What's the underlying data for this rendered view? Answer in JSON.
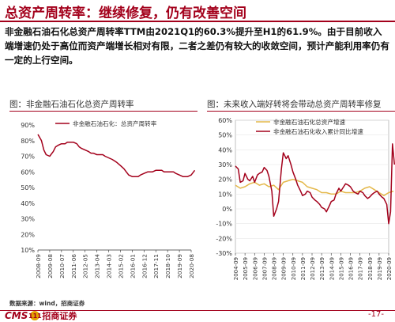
{
  "page": {
    "title": "总资产周转率：继续修复，仍有改善空间",
    "body": "非金融石油石化总资产周转率TTM由2021Q1的60.3%提升至H1的61.9%。由于目前收入端增速仍处于高位而资产端增长相对有限，二者之差仍有较大的收敛空间，预计产能利用率仍有一定的上行空间。",
    "source": "数据来源：wind，招商证券",
    "logo_text": "CMS",
    "logo_badge": "111",
    "logo_cn": "招商证券",
    "page_number": "-17-",
    "accent_color": "#a3001b",
    "gold_color": "#e4b84a"
  },
  "chart_data": [
    {
      "type": "line",
      "title": "图：非金融石油石化总资产周转率",
      "y_ticks": [
        "90%",
        "80%",
        "70%",
        "60%",
        "50%",
        "40%",
        "30%",
        "20%",
        "10%"
      ],
      "ylim": [
        10,
        90
      ],
      "x_tick_labels": [
        "2008-09",
        "2009-08",
        "2010-07",
        "2011-06",
        "2012-05",
        "2013-04",
        "2014-03",
        "2015-02",
        "2016-01",
        "2016-12",
        "2017-11",
        "2018-10",
        "2019-09",
        "2020-08"
      ],
      "legend_position": "top-left",
      "series": [
        {
          "name": "非金融石油石化：总资产周转率",
          "color": "#a3001b",
          "x": [
            0,
            0.3,
            0.5,
            0.7,
            1,
            1.3,
            1.5,
            1.7,
            2,
            2.3,
            2.5,
            2.7,
            3,
            3.3,
            3.5,
            3.7,
            4,
            4.3,
            4.5,
            4.7,
            5,
            5.3,
            5.5,
            5.7,
            6,
            6.3,
            6.5,
            6.7,
            7,
            7.3,
            7.5,
            7.7,
            8,
            8.3,
            8.5,
            8.7,
            9,
            9.3,
            9.5,
            9.7,
            10,
            10.3,
            10.5,
            10.7,
            11,
            11.3,
            11.5,
            11.7,
            12,
            12.3,
            12.5,
            12.7,
            13,
            13.3
          ],
          "values": [
            84,
            80,
            74,
            71,
            70,
            73,
            76,
            77,
            78,
            78,
            79,
            79,
            79,
            78,
            76,
            75,
            74,
            73,
            72,
            72,
            71,
            71,
            71,
            70,
            69,
            68,
            67,
            66,
            64,
            62,
            60,
            58,
            57,
            57,
            57,
            58,
            59,
            60,
            60,
            60,
            61,
            61,
            61,
            60,
            60,
            60,
            60,
            59,
            58,
            57,
            57,
            57,
            58,
            61
          ]
        }
      ]
    },
    {
      "type": "line",
      "title": "图：未来收入端好转将会带动总资产周转率修复",
      "y_ticks": [
        "60%",
        "50%",
        "40%",
        "30%",
        "20%",
        "10%",
        "0%",
        "-10%",
        "-20%",
        "-30%"
      ],
      "ylim": [
        -30,
        60
      ],
      "x_tick_labels": [
        "2004-09",
        "2005-09",
        "2006-09",
        "2007-09",
        "2008-09",
        "2009-09",
        "2010-09",
        "2011-09",
        "2012-09",
        "2013-09",
        "2014-09",
        "2015-09",
        "2016-09",
        "2017-09",
        "2018-09",
        "2019-09",
        "2020-09"
      ],
      "legend_position": "top",
      "series": [
        {
          "name": "非金融石油石化总资产增速",
          "color": "#e4b84a",
          "x": [
            0,
            0.5,
            1,
            1.5,
            2,
            2.5,
            3,
            3.5,
            4,
            4.5,
            5,
            5.5,
            6,
            6.5,
            7,
            7.5,
            8,
            8.5,
            9,
            9.5,
            10,
            10.5,
            11,
            11.5,
            12,
            12.5,
            13,
            13.5,
            14,
            14.5,
            15,
            15.5,
            16,
            16.5
          ],
          "values": [
            16,
            14,
            15,
            17,
            18,
            16,
            17,
            15,
            16,
            13,
            18,
            19,
            20,
            19,
            18,
            15,
            14,
            13,
            11,
            11,
            10,
            10,
            12,
            11,
            11,
            11,
            12,
            14,
            15,
            13,
            11,
            9,
            11,
            12
          ]
        },
        {
          "name": "非金融石油石化收入累计同比增速",
          "color": "#a3001b",
          "x": [
            0,
            0.3,
            0.5,
            0.8,
            1,
            1.3,
            1.5,
            1.8,
            2,
            2.3,
            2.5,
            2.8,
            3,
            3.3,
            3.5,
            3.8,
            4,
            4.3,
            4.5,
            4.8,
            5,
            5.3,
            5.5,
            5.8,
            6,
            6.3,
            6.5,
            6.8,
            7,
            7.3,
            7.5,
            7.8,
            8,
            8.3,
            8.5,
            8.8,
            9,
            9.3,
            9.5,
            9.8,
            10,
            10.3,
            10.5,
            10.8,
            11,
            11.3,
            11.5,
            11.8,
            12,
            12.3,
            12.5,
            12.8,
            13,
            13.3,
            13.5,
            13.8,
            14,
            14.3,
            14.5,
            14.8,
            15,
            15.3,
            15.5,
            15.8,
            16,
            16.2,
            16.4,
            16.6
          ],
          "values": [
            29,
            27,
            18,
            19,
            24,
            20,
            19,
            22,
            18,
            23,
            24,
            25,
            28,
            26,
            22,
            12,
            -5,
            0,
            5,
            27,
            38,
            34,
            36,
            30,
            25,
            20,
            16,
            12,
            9,
            10,
            12,
            11,
            8,
            6,
            5,
            3,
            1,
            0,
            -2,
            2,
            5,
            6,
            10,
            14,
            12,
            15,
            17,
            16,
            15,
            12,
            11,
            10,
            12,
            11,
            9,
            7,
            8,
            10,
            11,
            12,
            10,
            8,
            7,
            3,
            -10,
            -2,
            44,
            30
          ]
        }
      ]
    }
  ]
}
